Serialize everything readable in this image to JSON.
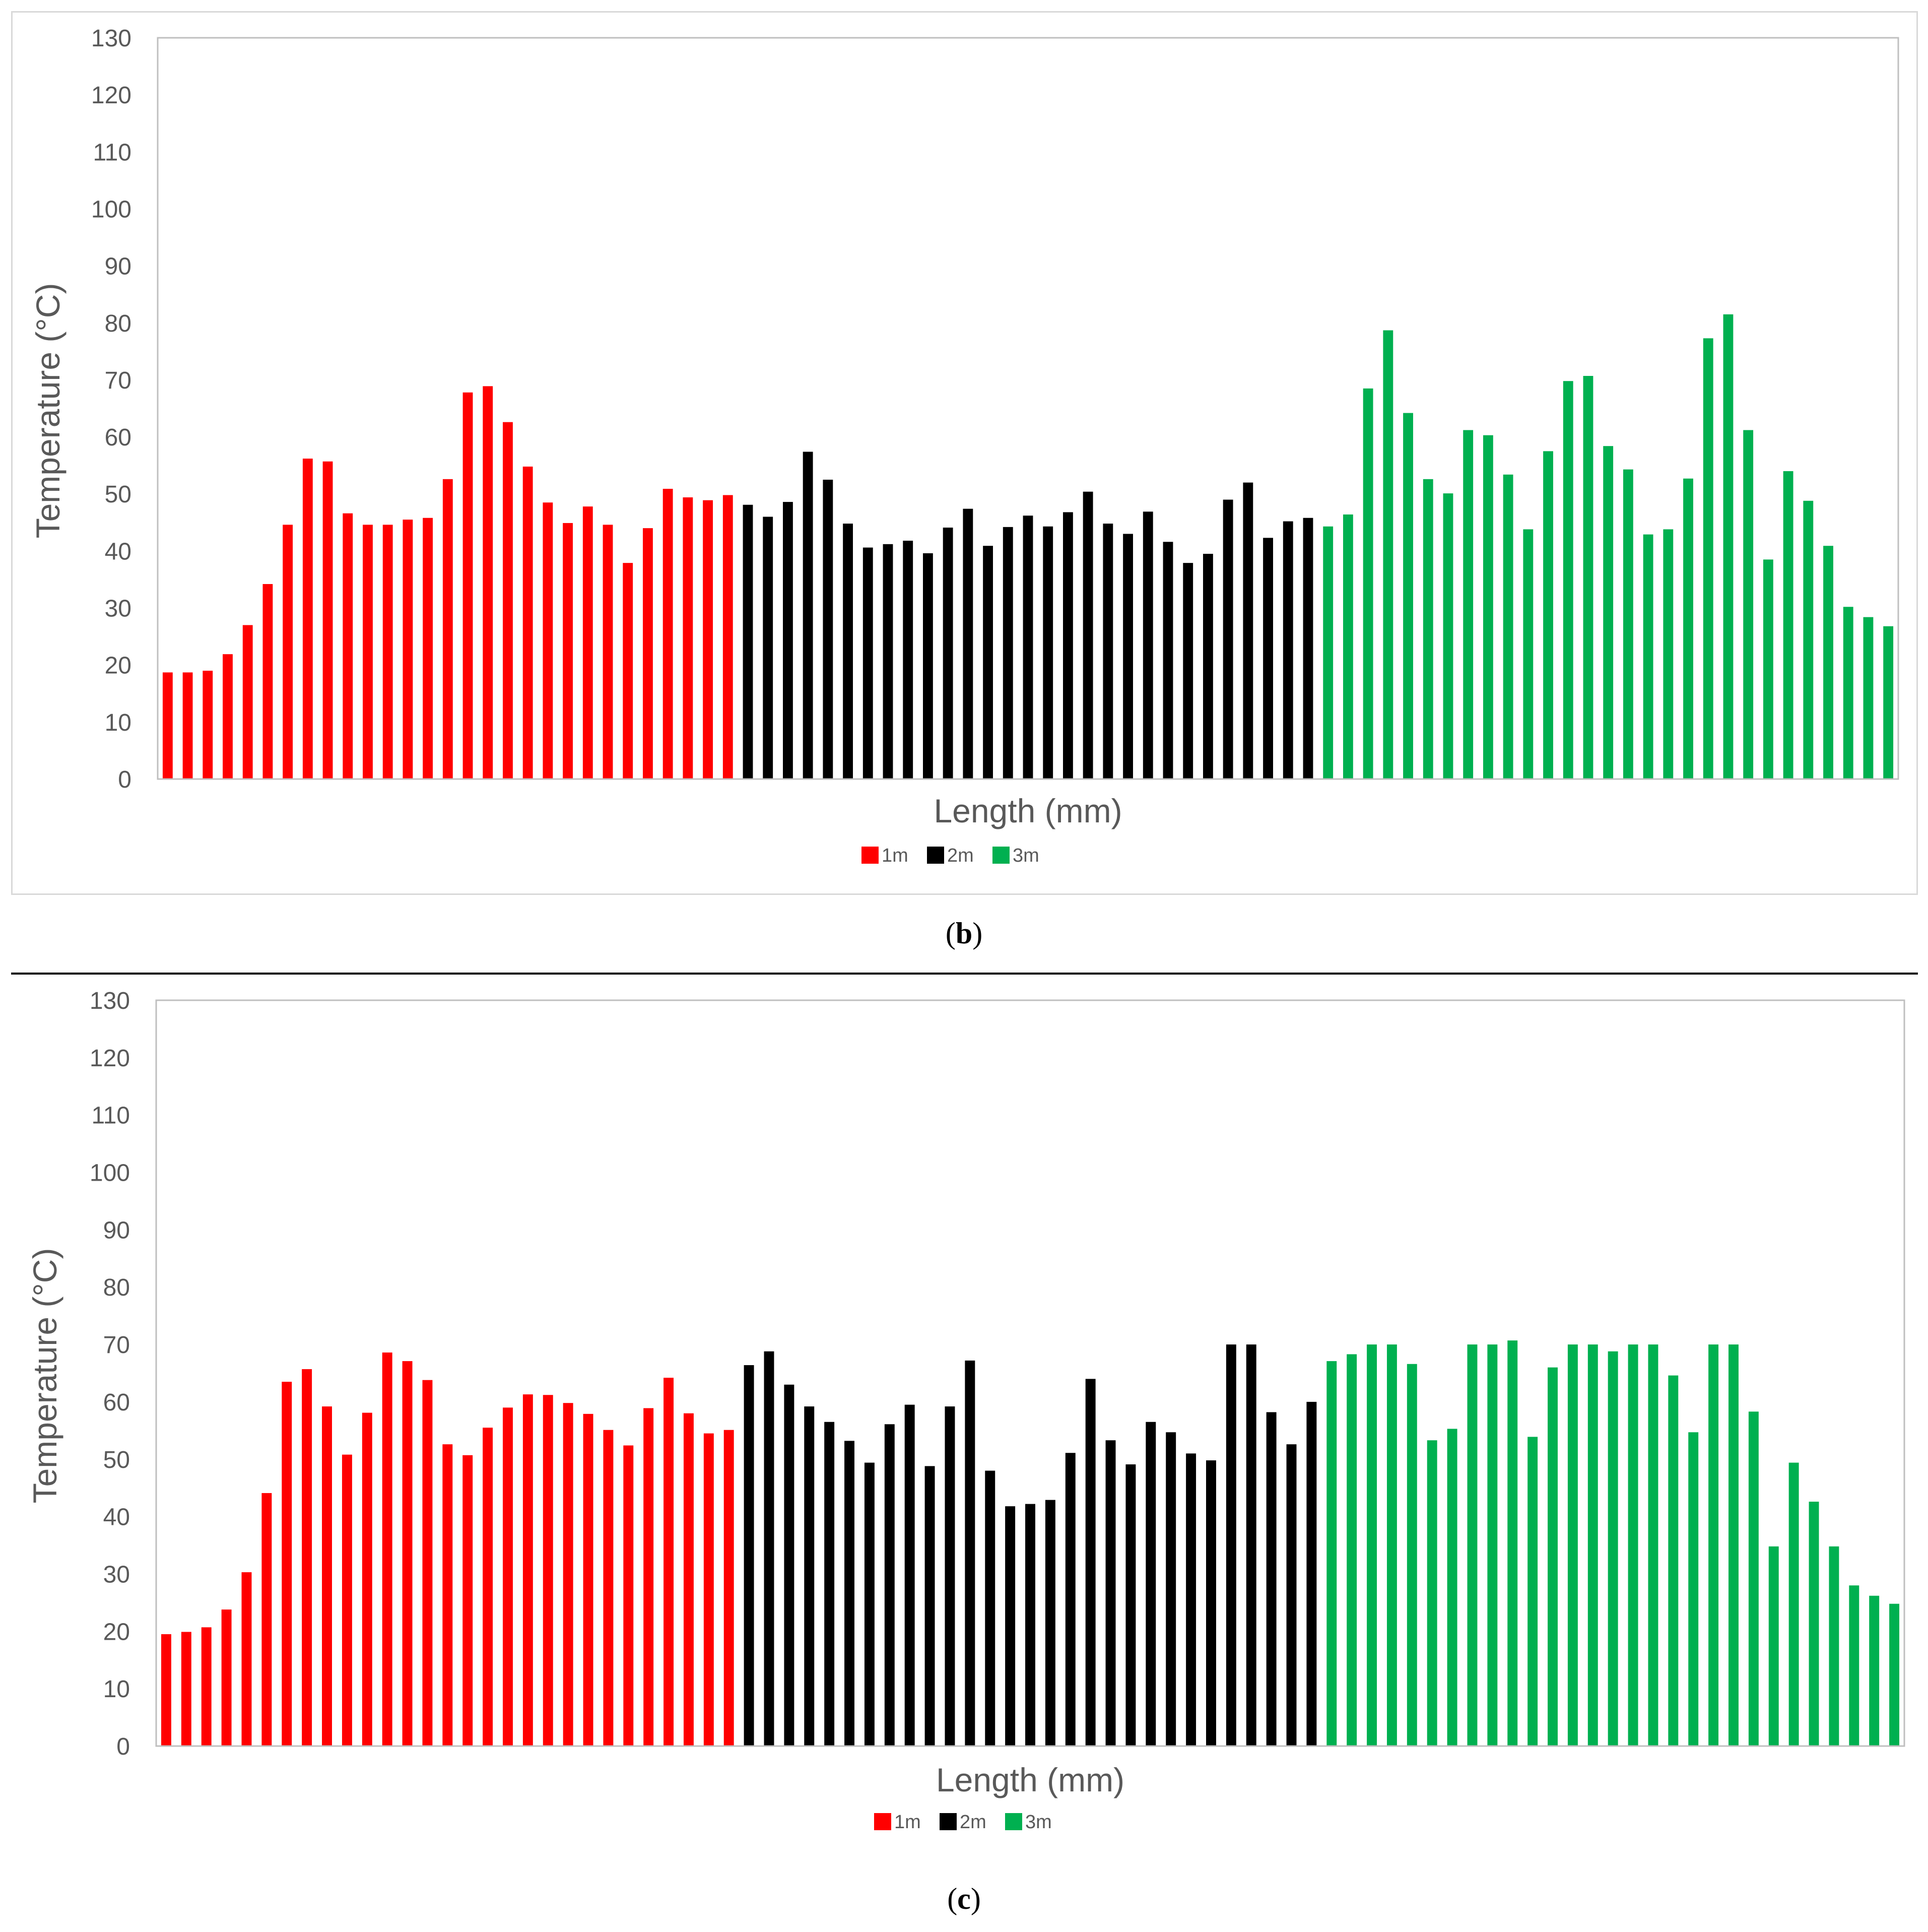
{
  "captions": {
    "b": "b",
    "c": "c"
  },
  "chart_data": [
    {
      "panel": "b",
      "type": "bar",
      "xlabel": "Length (mm)",
      "ylabel": "Temperature (°C)",
      "ylim": [
        0,
        130
      ],
      "yticks": [
        0,
        10,
        20,
        30,
        40,
        50,
        60,
        70,
        80,
        90,
        100,
        110,
        120,
        130
      ],
      "grid": false,
      "legend_position": "bottom-center",
      "series": [
        {
          "name": "1m",
          "color": "#ff0000",
          "values": [
            18.7,
            18.7,
            19,
            21.9,
            27,
            34.2,
            44.6,
            56.2,
            55.7,
            46.6,
            44.6,
            44.6,
            45.5,
            45.8,
            52.6,
            67.8,
            68.9,
            62.6,
            54.8,
            48.5,
            44.9,
            47.8,
            44.6,
            37.9,
            44,
            50.9,
            49.4,
            48.9,
            49.8
          ]
        },
        {
          "name": "2m",
          "color": "#000000",
          "values": [
            48.1,
            46,
            48.6,
            57.4,
            52.5,
            44.8,
            40.6,
            41.2,
            41.8,
            39.6,
            44.1,
            47.4,
            40.9,
            44.2,
            46.2,
            44.3,
            46.8,
            50.4,
            44.8,
            43,
            46.9,
            41.6,
            37.9,
            39.5,
            49,
            52,
            42.3,
            45.2,
            45.8
          ]
        },
        {
          "name": "3m",
          "color": "#00b050",
          "values": [
            44.3,
            46.4,
            68.5,
            78.7,
            64.2,
            52.6,
            50.1,
            61.2,
            60.3,
            53.4,
            43.8,
            57.5,
            69.8,
            70.7,
            58.4,
            54.3,
            42.9,
            43.8,
            52.7,
            77.3,
            81.5,
            61.2,
            38.5,
            54,
            48.8,
            40.9,
            30.2,
            28.4,
            26.8
          ]
        }
      ]
    },
    {
      "panel": "c",
      "type": "bar",
      "xlabel": "Length (mm)",
      "ylabel": "Temperature (°C)",
      "ylim": [
        0,
        130
      ],
      "yticks": [
        0,
        10,
        20,
        30,
        40,
        50,
        60,
        70,
        80,
        90,
        100,
        110,
        120,
        130
      ],
      "grid": false,
      "legend_position": "bottom-center",
      "series": [
        {
          "name": "1m",
          "color": "#ff0000",
          "values": [
            19.5,
            19.9,
            20.7,
            23.8,
            30.3,
            44.1,
            63.5,
            65.7,
            59.2,
            50.8,
            58.1,
            68.6,
            67.1,
            63.8,
            52.6,
            50.7,
            55.5,
            59,
            61.3,
            61.2,
            59.8,
            57.9,
            55.1,
            52.4,
            58.9,
            64.2,
            58,
            54.5,
            55.1
          ]
        },
        {
          "name": "2m",
          "color": "#000000",
          "values": [
            66.4,
            68.8,
            63,
            59.2,
            56.5,
            53.2,
            49.4,
            56.1,
            59.5,
            48.8,
            59.2,
            67.2,
            48,
            41.8,
            42.2,
            42.9,
            51.1,
            64,
            53.3,
            49.1,
            56.5,
            54.7,
            51,
            49.8,
            70,
            70,
            58.2,
            52.6,
            60
          ]
        },
        {
          "name": "3m",
          "color": "#00b050",
          "values": [
            67.1,
            68.3,
            70,
            70,
            66.6,
            53.3,
            55.3,
            70,
            70,
            70.7,
            53.9,
            66,
            70,
            70,
            68.8,
            70,
            70,
            64.6,
            54.7,
            70,
            70,
            58.3,
            34.8,
            49.4,
            42.6,
            34.8,
            28,
            26.2,
            24.8
          ]
        }
      ]
    }
  ]
}
